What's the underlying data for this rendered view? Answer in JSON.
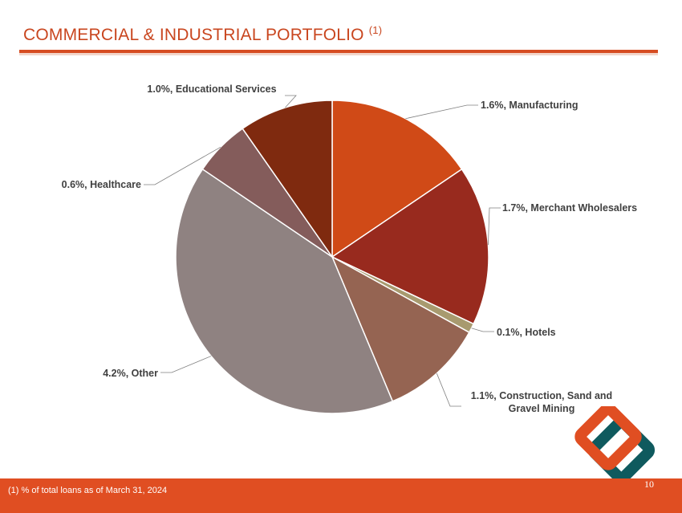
{
  "header": {
    "title": "COMMERCIAL & INDUSTRIAL PORTFOLIO",
    "title_note": "(1)"
  },
  "chart_data": {
    "type": "pie",
    "title": "COMMERCIAL & INDUSTRIAL PORTFOLIO (1)",
    "unit": "% of total loans",
    "slices": [
      {
        "label": "Manufacturing",
        "value": 1.6,
        "display": "1.6%, Manufacturing",
        "color": "#d04a17"
      },
      {
        "label": "Merchant Wholesalers",
        "value": 1.7,
        "display": "1.7%, Merchant Wholesalers",
        "color": "#982a1e"
      },
      {
        "label": "Hotels",
        "value": 0.1,
        "display": "0.1%, Hotels",
        "color": "#a89a6f"
      },
      {
        "label": "Construction, Sand and Gravel Mining",
        "value": 1.1,
        "display_lines": [
          "1.1%, Construction, Sand and",
          "Gravel Mining"
        ],
        "color": "#956452"
      },
      {
        "label": "Other",
        "value": 4.2,
        "display": "4.2%, Other",
        "color": "#8f8281"
      },
      {
        "label": "Healthcare",
        "value": 0.6,
        "display": "0.6%, Healthcare",
        "color": "#845c5b"
      },
      {
        "label": "Educational Services",
        "value": 1.0,
        "display": "1.0%, Educational Services",
        "color": "#7f2a0f"
      }
    ]
  },
  "footer": {
    "footnote": "(1)  % of total loans as of March 31, 2024",
    "page_number": "10"
  },
  "colors": {
    "accent": "#e04e22",
    "title": "#c9461f",
    "logo_orange": "#e04e22",
    "logo_teal": "#0f5a5e"
  },
  "logo": {
    "icon": "interlocking-diamonds-logo"
  }
}
